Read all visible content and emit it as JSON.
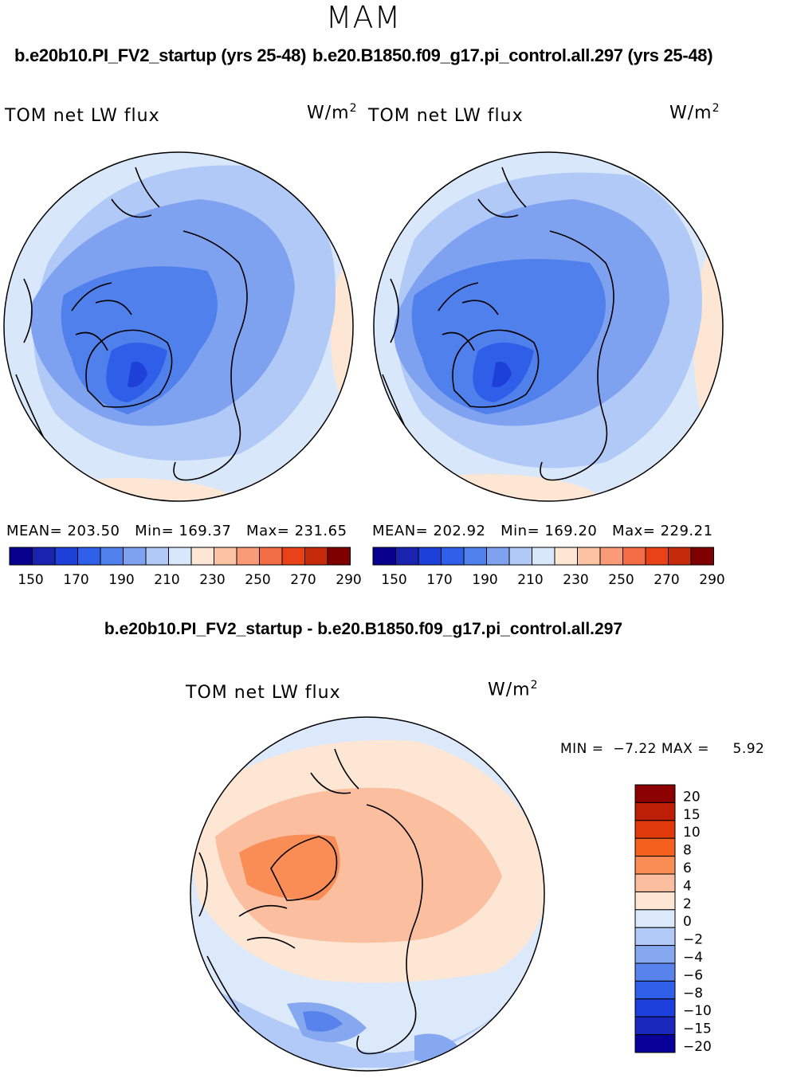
{
  "header": {
    "season": "MAM",
    "left_run": "b.e20b10.PI_FV2_startup (yrs 25-48)",
    "right_run": "b.e20.B1850.f09_g17.pi_control.all.297 (yrs 25-48)"
  },
  "panels": [
    {
      "variable": "TOM net LW flux",
      "units": "W/m",
      "units_sup": "2",
      "stats": {
        "mean": "MEAN= 203.50",
        "min": "Min= 169.37",
        "max": "Max= 231.65"
      }
    },
    {
      "variable": "TOM net LW flux",
      "units": "W/m",
      "units_sup": "2",
      "stats": {
        "mean": "MEAN= 202.92",
        "min": "Min= 169.20",
        "max": "Max= 229.21"
      }
    }
  ],
  "colorbar_main": {
    "colors": [
      "#08008c",
      "#1a22b0",
      "#1d40d8",
      "#2f5fe8",
      "#5080ec",
      "#7ea2f0",
      "#b1c9f7",
      "#d8e8fa",
      "#fde6d3",
      "#fbc3a4",
      "#f89b76",
      "#f26d46",
      "#e94219",
      "#c52a0b",
      "#7e0000"
    ],
    "labels": [
      "150",
      "170",
      "190",
      "210",
      "230",
      "250",
      "270",
      "290"
    ]
  },
  "difference": {
    "title": "b.e20b10.PI_FV2_startup - b.e20.B1850.f09_g17.pi_control.all.297",
    "variable": "TOM net LW flux",
    "units": "W/m",
    "units_sup": "2",
    "min_label": "MIN =",
    "min_value": "−7.22",
    "max_label": "MAX =",
    "max_value": "5.92"
  },
  "colorbar_diff": {
    "colors_top_to_bottom": [
      "#8b0000",
      "#bd1f06",
      "#e03a0c",
      "#f4611e",
      "#fa8c55",
      "#fbbe9e",
      "#fde6d3",
      "#dbe9fb",
      "#b2caf7",
      "#86a8f1",
      "#5882ec",
      "#2f5ee9",
      "#1d40dd",
      "#1a28bd",
      "#09009a"
    ],
    "labels_top_to_bottom": [
      "20",
      "15",
      "10",
      "8",
      "6",
      "4",
      "2",
      "0",
      "−2",
      "−4",
      "−6",
      "−8",
      "−10",
      "−15",
      "−20"
    ]
  }
}
